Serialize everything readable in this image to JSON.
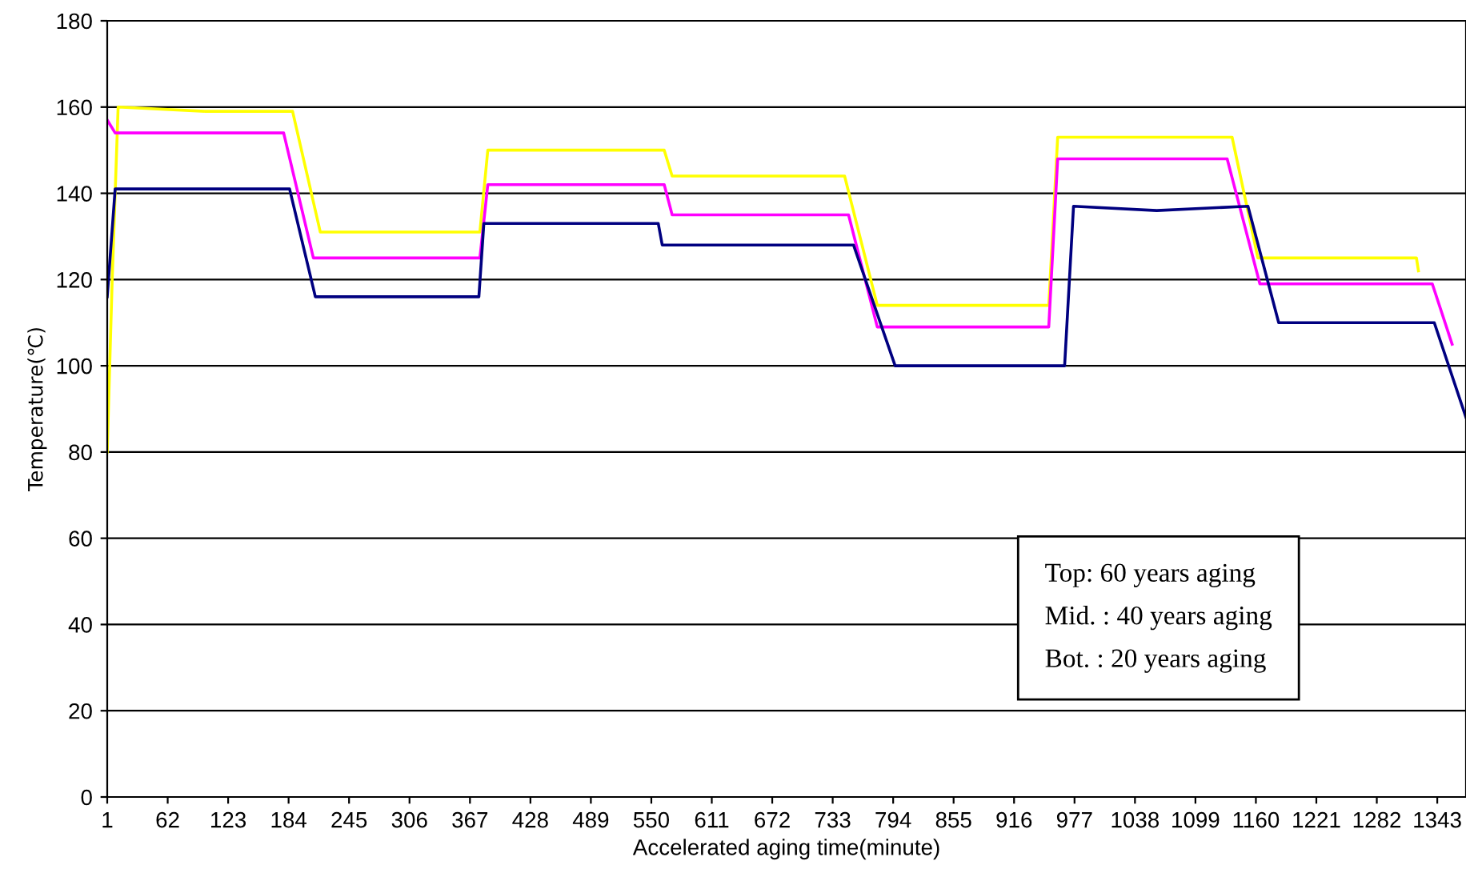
{
  "chart_data": {
    "type": "line",
    "xlabel": "Accelerated aging time(minute)",
    "ylabel": "Temperature(℃)",
    "xlim": [
      1,
      1372
    ],
    "xticks": [
      1,
      62,
      123,
      184,
      245,
      306,
      367,
      428,
      489,
      550,
      611,
      672,
      733,
      794,
      855,
      916,
      977,
      1038,
      1099,
      1160,
      1221,
      1282,
      1343
    ],
    "ylim": [
      0,
      180
    ],
    "yticks": [
      0,
      20,
      40,
      60,
      80,
      100,
      120,
      140,
      160,
      180
    ],
    "grid": "y",
    "marker": "none",
    "line_style": "solid",
    "annotations": [
      "Top: 60 years aging",
      "Mid. : 40 years aging",
      "Bot. : 20 years aging"
    ],
    "series": [
      {
        "color": "#ffff00",
        "x": [
          1,
          6,
          12,
          100,
          188,
          216,
          300,
          377,
          385,
          470,
          563,
          571,
          660,
          745,
          778,
          860,
          951,
          960,
          1050,
          1136,
          1162,
          1240,
          1322,
          1324
        ],
        "values": [
          80,
          120,
          160,
          159,
          159,
          131,
          131,
          131,
          150,
          150,
          150,
          144,
          144,
          144,
          114,
          114,
          114,
          153,
          153,
          153,
          125,
          125,
          125,
          122
        ]
      },
      {
        "color": "#ff00ff",
        "x": [
          1,
          9,
          100,
          179,
          209,
          300,
          377,
          385,
          470,
          563,
          571,
          660,
          749,
          778,
          860,
          951,
          960,
          1050,
          1131,
          1164,
          1250,
          1338,
          1358
        ],
        "values": [
          157,
          154,
          154,
          154,
          125,
          125,
          125,
          142,
          142,
          142,
          135,
          135,
          135,
          109,
          109,
          109,
          148,
          148,
          148,
          119,
          119,
          119,
          105
        ]
      },
      {
        "color": "#000080",
        "x": [
          1,
          9,
          100,
          185,
          211,
          300,
          376,
          381,
          470,
          557,
          561,
          660,
          754,
          796,
          880,
          967,
          976,
          1060,
          1152,
          1183,
          1260,
          1340,
          1372
        ],
        "values": [
          116,
          141,
          141,
          141,
          116,
          116,
          116,
          133,
          133,
          133,
          128,
          128,
          128,
          100,
          100,
          100,
          137,
          136,
          137,
          110,
          110,
          110,
          88
        ]
      }
    ]
  }
}
